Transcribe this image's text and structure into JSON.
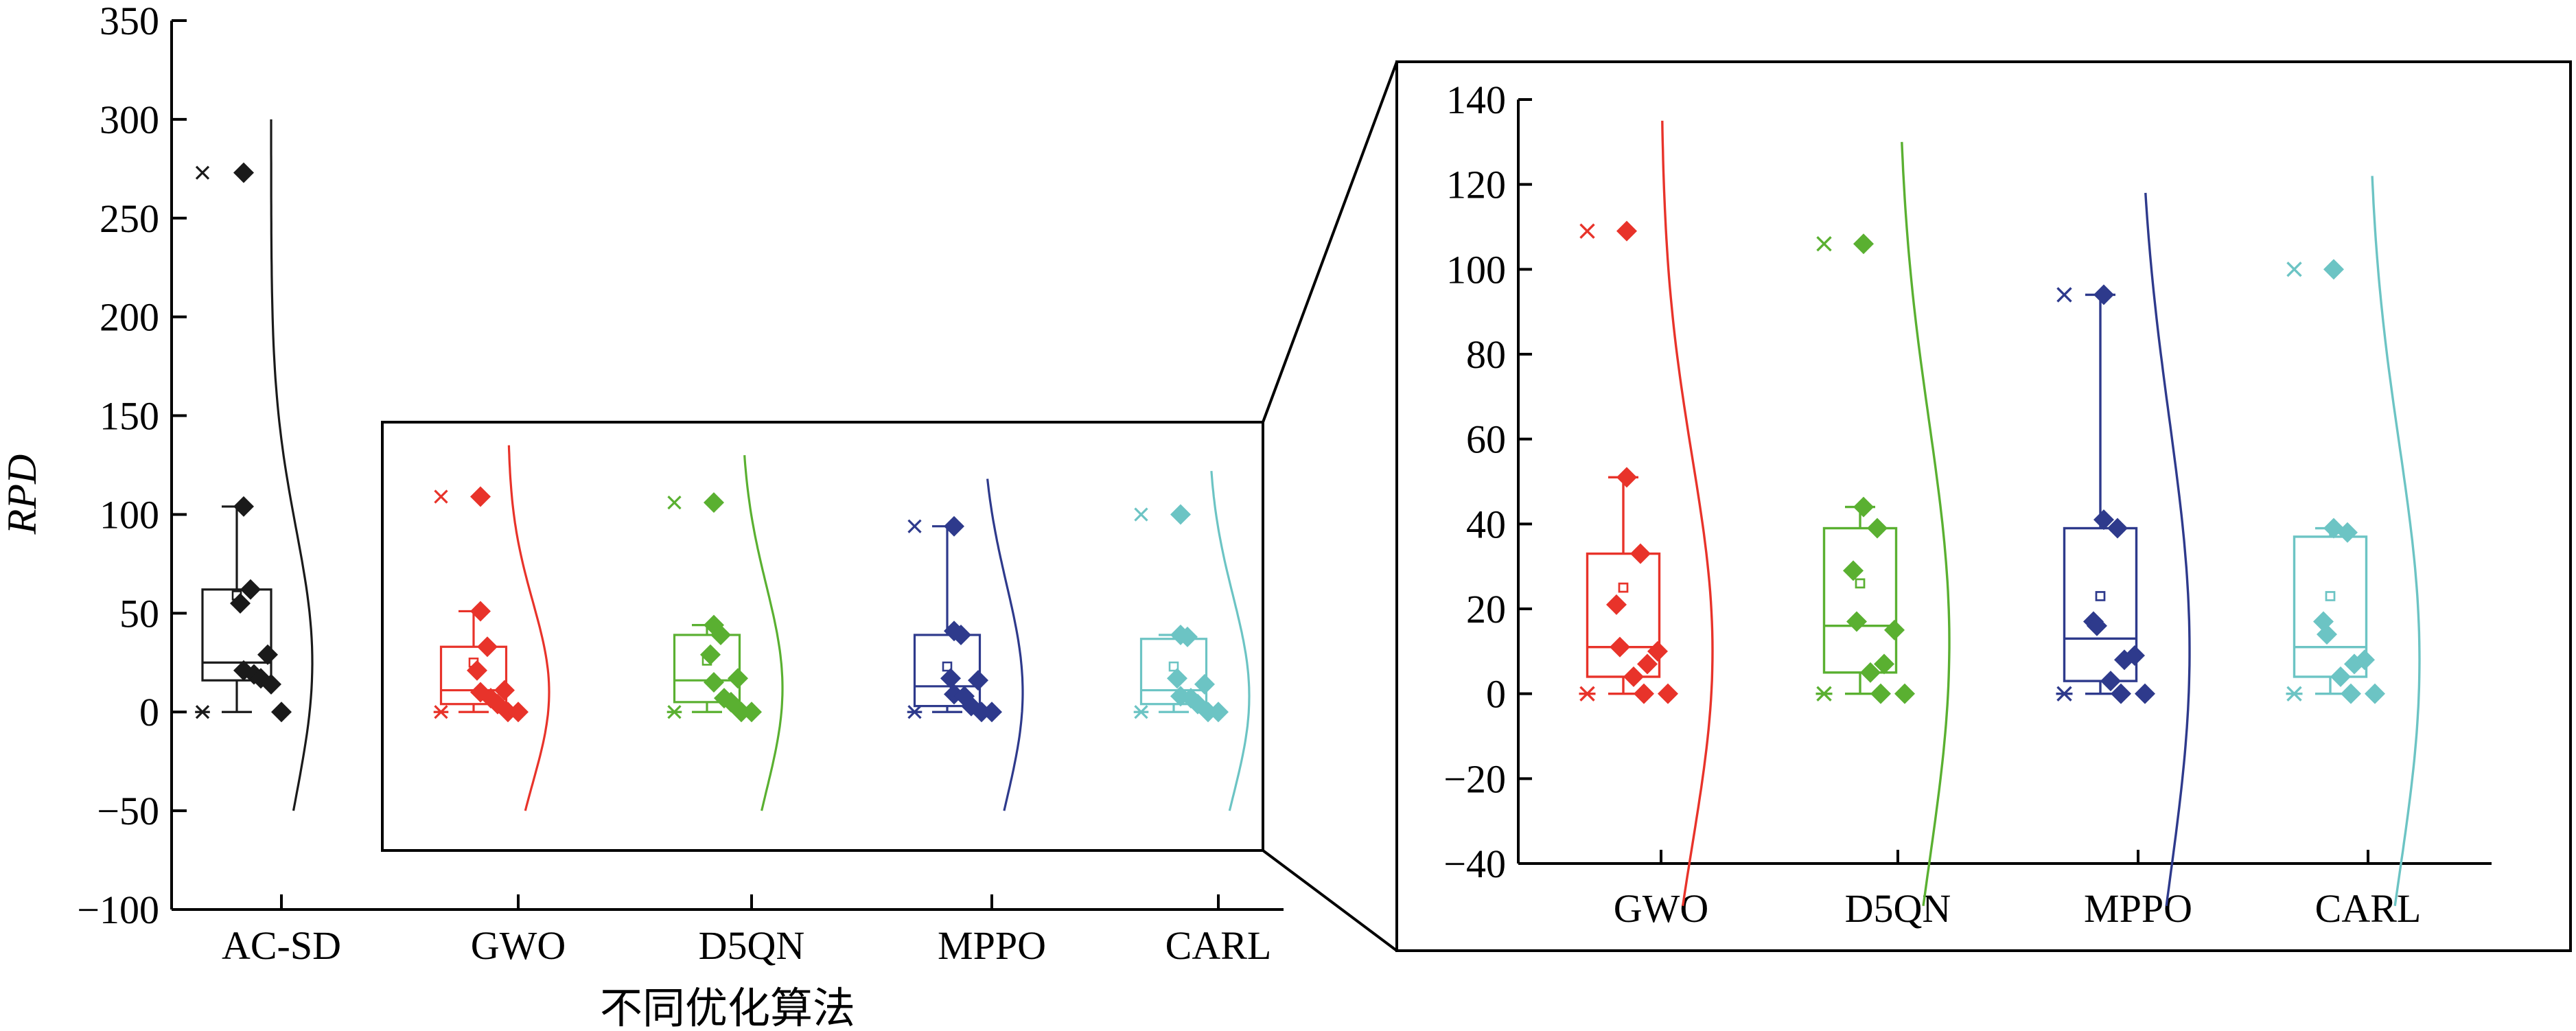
{
  "chart_data": [
    {
      "type": "box",
      "panel": "main",
      "ylabel": "RPD",
      "xlabel": "不同优化算法",
      "ylim": [
        -100,
        350
      ],
      "yticks": [
        -100,
        -50,
        0,
        50,
        100,
        150,
        200,
        250,
        300,
        350
      ],
      "ytick_labels": [
        "−100",
        "−50",
        "0",
        "50",
        "100",
        "150",
        "200",
        "250",
        "300",
        "350"
      ],
      "categories": [
        "AC-SD",
        "GWO",
        "D5QN",
        "MPPO",
        "CARL"
      ],
      "series": [
        {
          "category": "AC-SD",
          "color": "#1a1a1a",
          "q1": 16,
          "median": 25,
          "q3": 62,
          "whisker_low": 0,
          "whisker_high": 104,
          "mean": 59,
          "outlier_max": 273,
          "outlier_min": 0,
          "points": [
            273,
            104,
            62,
            55,
            29,
            21,
            19,
            17,
            14,
            0
          ],
          "curve_range": [
            -50,
            300
          ],
          "curve_peak": 25
        },
        {
          "category": "GWO",
          "color": "#e8332a",
          "q1": 4,
          "median": 11,
          "q3": 33,
          "whisker_low": 0,
          "whisker_high": 51,
          "mean": 25,
          "outlier_max": 109,
          "outlier_min": 0,
          "points": [
            109,
            51,
            33,
            21,
            11,
            10,
            7,
            4,
            0,
            0
          ],
          "curve_range": [
            -50,
            135
          ],
          "curve_peak": 10
        },
        {
          "category": "D5QN",
          "color": "#5ab031",
          "q1": 5,
          "median": 16,
          "q3": 39,
          "whisker_low": 0,
          "whisker_high": 44,
          "mean": 26,
          "outlier_max": 106,
          "outlier_min": 0,
          "points": [
            106,
            44,
            39,
            29,
            17,
            15,
            7,
            5,
            0,
            0
          ],
          "curve_range": [
            -50,
            130
          ],
          "curve_peak": 12
        },
        {
          "category": "MPPO",
          "color": "#2e3a8c",
          "q1": 3,
          "median": 13,
          "q3": 39,
          "whisker_low": 0,
          "whisker_high": 94,
          "mean": 23,
          "outlier_max": 94,
          "outlier_min": 0,
          "points": [
            94,
            41,
            39,
            17,
            16,
            9,
            8,
            3,
            0,
            0
          ],
          "curve_range": [
            -50,
            118
          ],
          "curve_peak": 10
        },
        {
          "category": "CARL",
          "color": "#6cc4c4",
          "q1": 4,
          "median": 11,
          "q3": 37,
          "whisker_low": 0,
          "whisker_high": 39,
          "mean": 23,
          "outlier_max": 100,
          "outlier_min": 0,
          "points": [
            100,
            39,
            38,
            17,
            14,
            8,
            7,
            4,
            0,
            0
          ],
          "curve_range": [
            -50,
            122
          ],
          "curve_peak": 8
        }
      ]
    },
    {
      "type": "box",
      "panel": "inset-zoom",
      "ylim": [
        -40,
        140
      ],
      "yticks": [
        -40,
        -20,
        0,
        20,
        40,
        60,
        80,
        100,
        120,
        140
      ],
      "ytick_labels": [
        "−40",
        "−20",
        "0",
        "20",
        "40",
        "60",
        "80",
        "100",
        "120",
        "140"
      ],
      "categories": [
        "GWO",
        "D5QN",
        "MPPO",
        "CARL"
      ]
    }
  ]
}
